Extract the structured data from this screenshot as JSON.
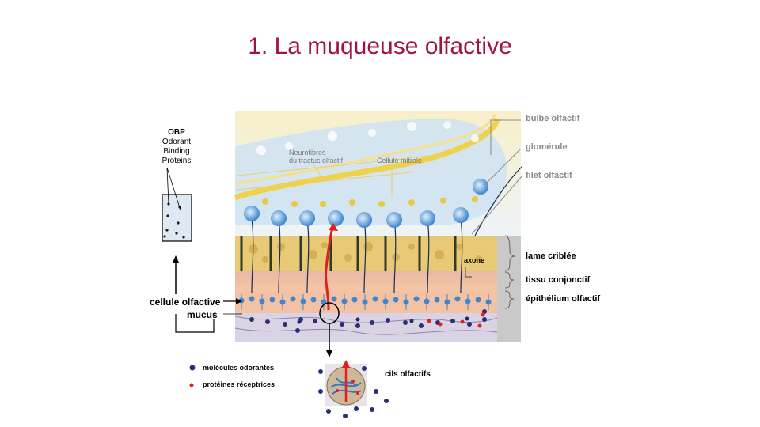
{
  "slide": {
    "title": "1. La muqueuse olfactive"
  },
  "obp": {
    "title": "OBP",
    "line1": "Odorant",
    "line2": "Binding",
    "line3": "Proteins"
  },
  "left_labels": {
    "cellule_olfactive": "cellule olfactive",
    "mucus": "mucus"
  },
  "illustration": {
    "neurofibres_line1": "Neurofibres",
    "neurofibres_line2": "du tractus olfactif",
    "cellule_mitrale": "Cellule mitrale",
    "axone": "axone"
  },
  "right_labels": {
    "bulbe_olfactif": "bulbe olfactif",
    "glomerule": "glomérule",
    "filet_olfactif": "filet olfactif",
    "lame_criblee": "lame criblée",
    "tissu_conjonctif": "tissu conjonctif",
    "epithelium_olfactif": "épithélium olfactif"
  },
  "legend": {
    "molecules_odorantes": "molécules odorantes",
    "proteines_receptrices": "protéines réceptrices",
    "molecule_color": "#2b2f7a",
    "protein_color": "#e02020"
  },
  "zoom": {
    "cils_olfactifs": "cils olfactifs"
  },
  "colors": {
    "title": "#a0153e",
    "bulb_yellow": "#f2dc5c",
    "bone": "#e6c878",
    "neuron_blue": "#4a8fd0",
    "connective": "#f0b89a",
    "grey_label": "#8a8a8a"
  }
}
